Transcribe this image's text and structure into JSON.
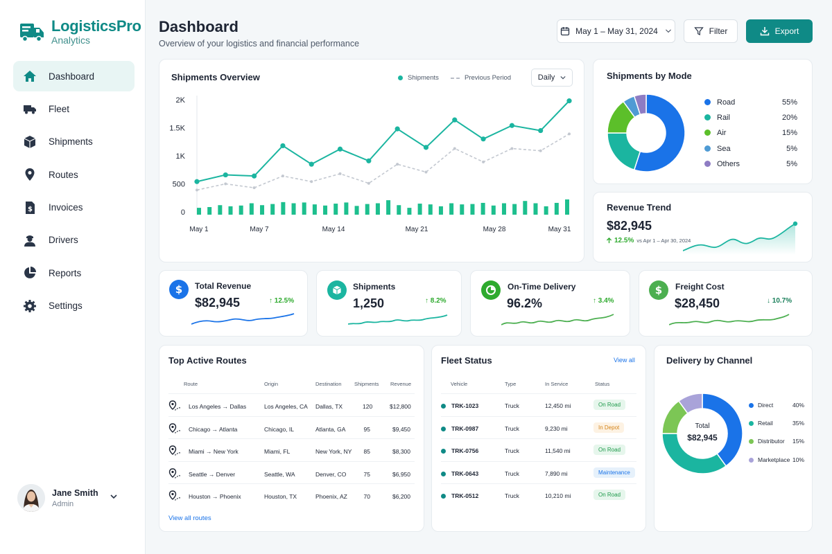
{
  "brand": {
    "name": "LogisticsPro",
    "sub": "Analytics"
  },
  "sidebar": {
    "items": [
      {
        "label": "Dashboard",
        "icon": "home-icon"
      },
      {
        "label": "Fleet",
        "icon": "truck-icon"
      },
      {
        "label": "Shipments",
        "icon": "box-icon"
      },
      {
        "label": "Routes",
        "icon": "map-pin-icon"
      },
      {
        "label": "Invoices",
        "icon": "invoice-icon"
      },
      {
        "label": "Drivers",
        "icon": "driver-icon"
      },
      {
        "label": "Reports",
        "icon": "pie-chart-icon"
      },
      {
        "label": "Settings",
        "icon": "gear-icon"
      }
    ],
    "user": {
      "name": "Jane Smith",
      "role": "Admin"
    }
  },
  "header": {
    "title": "Dashboard",
    "subtitle": "Overview of your logistics and financial performance",
    "date_range": "May 1 – May 31, 2024",
    "filter_label": "Filter",
    "export_label": "Export"
  },
  "colors": {
    "accent": "#0f8a86",
    "teal": "#1bb5a0",
    "blue": "#1a73e8",
    "green": "#2eaa2e",
    "red": "#1a7f5a"
  },
  "shipments_overview": {
    "title": "Shipments Overview",
    "legend_current": "Shipments",
    "legend_previous": "Previous Period",
    "period_select": "Daily",
    "chart_data": {
      "type": "line",
      "title": "Shipments Overview",
      "x_ticks": [
        "May 1",
        "May 7",
        "May 14",
        "May 21",
        "May 28",
        "May 31"
      ],
      "y_ticks": [
        "0",
        "500",
        "1K",
        "1.5K",
        "2K"
      ],
      "ylim": [
        0,
        2000
      ],
      "series": [
        {
          "name": "Shipments",
          "values": [
            540,
            660,
            640,
            1180,
            850,
            1120,
            910,
            1480,
            1150,
            1640,
            1300,
            1540,
            1450,
            1980
          ]
        },
        {
          "name": "Previous Period",
          "values": [
            390,
            500,
            430,
            640,
            540,
            680,
            510,
            850,
            710,
            1130,
            890,
            1130,
            1090,
            1390
          ]
        }
      ],
      "bars": [
        18,
        20,
        25,
        22,
        24,
        30,
        25,
        28,
        33,
        30,
        32,
        27,
        24,
        29,
        32,
        23,
        28,
        30,
        38,
        25,
        18,
        29,
        27,
        22,
        30,
        27,
        28,
        31,
        24,
        30,
        28,
        36,
        30,
        22,
        31,
        40
      ]
    }
  },
  "shipments_by_mode": {
    "title": "Shipments by Mode",
    "chart_data": {
      "type": "pie",
      "labels": [
        "Road",
        "Rail",
        "Air",
        "Sea",
        "Others"
      ],
      "values": [
        55,
        20,
        15,
        5,
        5
      ],
      "display": [
        "55%",
        "20%",
        "15%",
        "5%",
        "5%"
      ],
      "colors": [
        "#1a73e8",
        "#1bb5a0",
        "#5cbf2a",
        "#4f9bd4",
        "#8e7cc3"
      ]
    }
  },
  "revenue_trend": {
    "title": "Revenue Trend",
    "value": "$82,945",
    "change": "12.5%",
    "period": "vs Apr 1 – Apr 30, 2024"
  },
  "kpis": [
    {
      "label": "Total Revenue",
      "value": "$82,945",
      "change": "12.5%",
      "icon": "dollar-icon",
      "color": "#1a73e8",
      "dir": "up"
    },
    {
      "label": "Shipments",
      "value": "1,250",
      "change": "8.2%",
      "icon": "box-icon",
      "color": "#1bb5a0",
      "dir": "up"
    },
    {
      "label": "On-Time Delivery",
      "value": "96.2%",
      "change": "3.4%",
      "icon": "clock-pie-icon",
      "color": "#2eaa2e",
      "dir": "up"
    },
    {
      "label": "Freight Cost",
      "value": "$28,450",
      "change": "10.7%",
      "icon": "dollar-icon",
      "color": "#4caf50",
      "dir": "down"
    }
  ],
  "routes": {
    "title": "Top Active Routes",
    "headers": [
      "Route",
      "Origin",
      "Destination",
      "Shipments",
      "Revenue"
    ],
    "rows": [
      [
        "Los Angeles → Dallas",
        "Los Angeles, CA",
        "Dallas, TX",
        "120",
        "$12,800"
      ],
      [
        "Chicago → Atlanta",
        "Chicago, IL",
        "Atlanta, GA",
        "95",
        "$9,450"
      ],
      [
        "Miami → New York",
        "Miami, FL",
        "New York, NY",
        "85",
        "$8,300"
      ],
      [
        "Seattle → Denver",
        "Seattle, WA",
        "Denver, CO",
        "75",
        "$6,950"
      ],
      [
        "Houston → Phoenix",
        "Houston, TX",
        "Phoenix, AZ",
        "70",
        "$6,200"
      ]
    ],
    "view_all": "View all routes"
  },
  "fleet": {
    "title": "Fleet Status",
    "view_all": "View all",
    "headers": [
      "Vehicle",
      "Type",
      "In Service",
      "Status"
    ],
    "rows": [
      [
        "TRK-1023",
        "Truck",
        "12,450 mi",
        "On Road"
      ],
      [
        "TRK-0987",
        "Truck",
        "9,230 mi",
        "In Depot"
      ],
      [
        "TRK-0756",
        "Truck",
        "11,540 mi",
        "On Road"
      ],
      [
        "TRK-0643",
        "Truck",
        "7,890 mi",
        "Maintenance"
      ],
      [
        "TRK-0512",
        "Truck",
        "10,210 mi",
        "On Road"
      ]
    ]
  },
  "delivery_channel": {
    "title": "Delivery by Channel",
    "center_label": "Total",
    "center_value": "$82,945",
    "chart_data": {
      "type": "pie",
      "labels": [
        "Direct",
        "Retail",
        "Distributor",
        "Marketplace"
      ],
      "values": [
        40,
        35,
        15,
        10
      ],
      "display": [
        "40%",
        "35%",
        "15%",
        "10%"
      ],
      "colors": [
        "#1a73e8",
        "#1bb5a0",
        "#7cc655",
        "#a9a3d9"
      ]
    }
  }
}
